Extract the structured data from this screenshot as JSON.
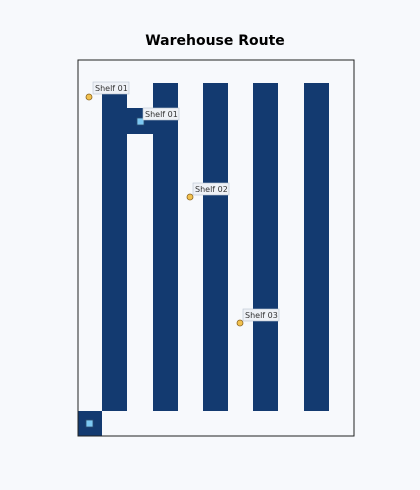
{
  "title": "Warehouse Route",
  "colors": {
    "background": "#f7f9fc",
    "plot_background": "#f7f9fc",
    "shelf": "#133a70",
    "frame": "#222222",
    "pin_fill": "#f2c14e",
    "pin_stroke": "#8a6420",
    "square_fill": "#7cc8f2",
    "square_stroke": "#2b4c6e",
    "label_bg": "#eef1f6",
    "label_stroke": "#b9c3d1",
    "label_text": "#333333"
  },
  "map": {
    "shelf_rows": 5,
    "corridor_connector": true,
    "labels": [
      {
        "id": "label-shelf-01-a",
        "text": "Shelf 01",
        "icon": "pin-icon"
      },
      {
        "id": "label-shelf-01-b",
        "text": "Shelf 01",
        "icon": "square-marker-icon"
      },
      {
        "id": "label-shelf-02",
        "text": "Shelf 02",
        "icon": "pin-icon"
      },
      {
        "id": "label-shelf-03",
        "text": "Shelf 03",
        "icon": "pin-icon"
      }
    ]
  }
}
